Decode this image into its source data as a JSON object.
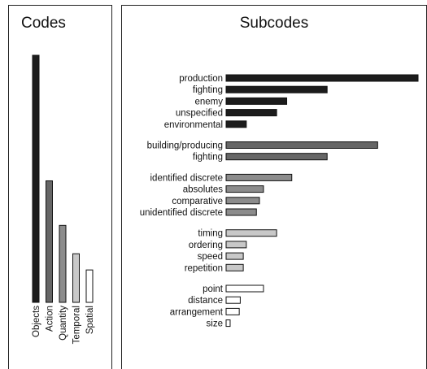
{
  "chart_data": [
    {
      "type": "bar",
      "orientation": "vertical",
      "title": "Codes",
      "categories": [
        "Objects",
        "Action",
        "Quantity",
        "Temporal",
        "Spatial"
      ],
      "values": [
        61,
        30,
        19,
        12,
        8
      ],
      "ylim": [
        0,
        61
      ],
      "colors": [
        "#1c1c1c",
        "#666666",
        "#8c8c8c",
        "#c8c8c8",
        "#ffffff"
      ],
      "grid": false,
      "legend": "none"
    },
    {
      "type": "bar",
      "orientation": "horizontal",
      "title": "Subcodes",
      "categories": [
        "production",
        "fighting",
        "enemy",
        "unspecified",
        "environmental",
        "building/producing",
        "fighting",
        "identified discrete",
        "absolutes",
        "comparative",
        "unidentified discrete",
        "timing",
        "ordering",
        "speed",
        "repetition",
        "point",
        "distance",
        "arrangement",
        "size"
      ],
      "values": [
        19,
        10,
        6,
        5,
        2,
        15,
        10,
        6.5,
        3.7,
        3.3,
        3,
        5,
        2,
        1.7,
        1.7,
        3.7,
        1.4,
        1.3,
        0.4
      ],
      "groups": [
        {
          "code": "Objects",
          "color": "#1c1c1c",
          "count": 5
        },
        {
          "code": "Action",
          "color": "#666666",
          "count": 2
        },
        {
          "code": "Quantity",
          "color": "#8c8c8c",
          "count": 4
        },
        {
          "code": "Temporal",
          "color": "#c8c8c8",
          "count": 4
        },
        {
          "code": "Spatial",
          "color": "#ffffff",
          "count": 4
        }
      ],
      "xlim": [
        0,
        19
      ],
      "grid": false,
      "legend": "none"
    }
  ]
}
